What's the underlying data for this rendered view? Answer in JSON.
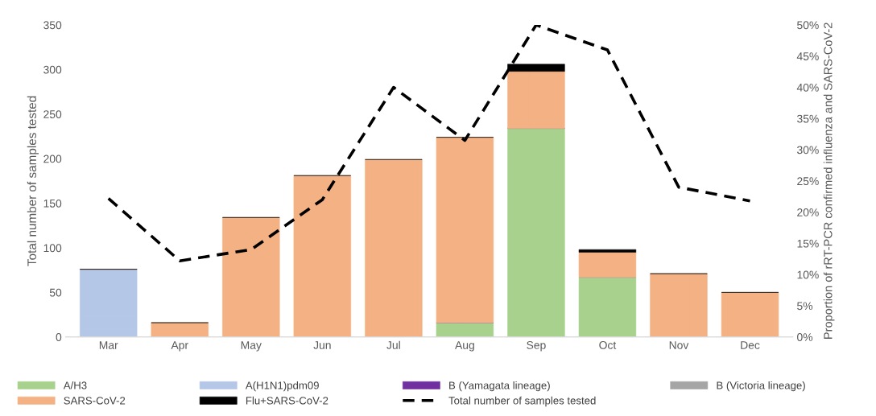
{
  "chart_data": {
    "type": "bar",
    "stacked": true,
    "categories": [
      "Mar",
      "Apr",
      "May",
      "Jun",
      "Jul",
      "Aug",
      "Sep",
      "Oct",
      "Nov",
      "Dec"
    ],
    "ylabel": "Total number of samples tested",
    "y2label": "Proportion of rRT-PCR confirmed influenza and SARS-CoV-2",
    "ylim": [
      0,
      350
    ],
    "yticks": [
      0,
      50,
      100,
      150,
      200,
      250,
      300,
      350
    ],
    "y2lim": [
      0,
      50
    ],
    "y2ticks": [
      {
        "value": 0,
        "label": "0%"
      },
      {
        "value": 5,
        "label": "5%"
      },
      {
        "value": 10,
        "label": "10%"
      },
      {
        "value": 15,
        "label": "15%"
      },
      {
        "value": 20,
        "label": "20%"
      },
      {
        "value": 25,
        "label": "25%"
      },
      {
        "value": 30,
        "label": "30%"
      },
      {
        "value": 35,
        "label": "35%"
      },
      {
        "value": 40,
        "label": "40%"
      },
      {
        "value": 45,
        "label": "45%"
      },
      {
        "value": 50,
        "label": "50%"
      }
    ],
    "grid": false,
    "legend": "bottom",
    "series": [
      {
        "name": "A/H3",
        "color": "#a9d18e",
        "values": [
          0,
          0,
          0,
          0,
          0,
          16,
          234,
          67,
          0,
          0
        ]
      },
      {
        "name": "A(H1N1)pdm09",
        "color": "#b4c7e7",
        "values": [
          76,
          0,
          0,
          0,
          0,
          0,
          0,
          0,
          0,
          0
        ]
      },
      {
        "name": "B (Yamagata lineage)",
        "color": "#7030a0",
        "values": [
          0,
          0,
          0,
          0,
          0,
          0,
          0,
          0,
          0,
          0
        ]
      },
      {
        "name": "B (Victoria lineage)",
        "color": "#a5a5a5",
        "values": [
          0,
          0,
          0,
          0,
          0,
          0,
          0,
          0,
          0,
          0
        ]
      },
      {
        "name": "SARS-CoV-2",
        "color": "#f4b183",
        "values": [
          0,
          16,
          134,
          181,
          199,
          208,
          64,
          28,
          71,
          50
        ]
      },
      {
        "name": "Flu+SARS-CoV-2",
        "color": "#000000",
        "values": [
          0,
          0,
          0,
          0,
          0,
          0,
          8,
          3,
          0,
          0
        ]
      },
      {
        "name": "Total number of samples tested",
        "type": "line",
        "axis": "y2",
        "color": "#000000",
        "line_style": "dashed",
        "values": [
          22.2,
          12.2,
          14,
          22,
          40,
          31.5,
          50,
          46,
          24,
          21.8
        ]
      }
    ]
  }
}
